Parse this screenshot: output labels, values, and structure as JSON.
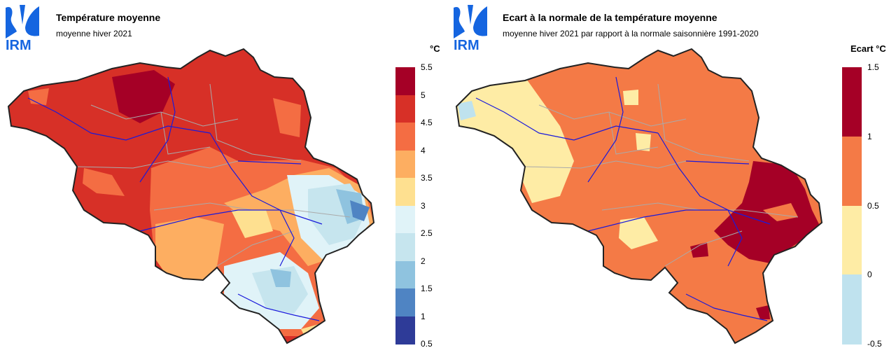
{
  "panels": [
    {
      "logo_text": "IRM",
      "title": "Température moyenne",
      "subtitle": "moyenne hiver 2021",
      "legend_unit": "°C",
      "legend_ticks": [
        "5.5",
        "5",
        "4.5",
        "4",
        "3.5",
        "3",
        "2.5",
        "2",
        "1.5",
        "1",
        "0.5"
      ],
      "legend_colors": [
        "#a50026",
        "#d73027",
        "#f46d43",
        "#fdae61",
        "#fee090",
        "#e0f3f8",
        "#c6e5ee",
        "#8fc3df",
        "#4f84c3",
        "#2e3b98"
      ]
    },
    {
      "logo_text": "IRM",
      "title": "Ecart à la normale de la température moyenne",
      "subtitle": "moyenne hiver 2021 par rapport à la normale saisonnière 1991-2020",
      "legend_unit": "Ecart  °C",
      "legend_ticks": [
        "1.5",
        "1",
        "0.5",
        "0",
        "-0.5"
      ],
      "legend_colors": [
        "#a50026",
        "#f47a46",
        "#feeca5",
        "#bfe2ee"
      ]
    }
  ]
}
